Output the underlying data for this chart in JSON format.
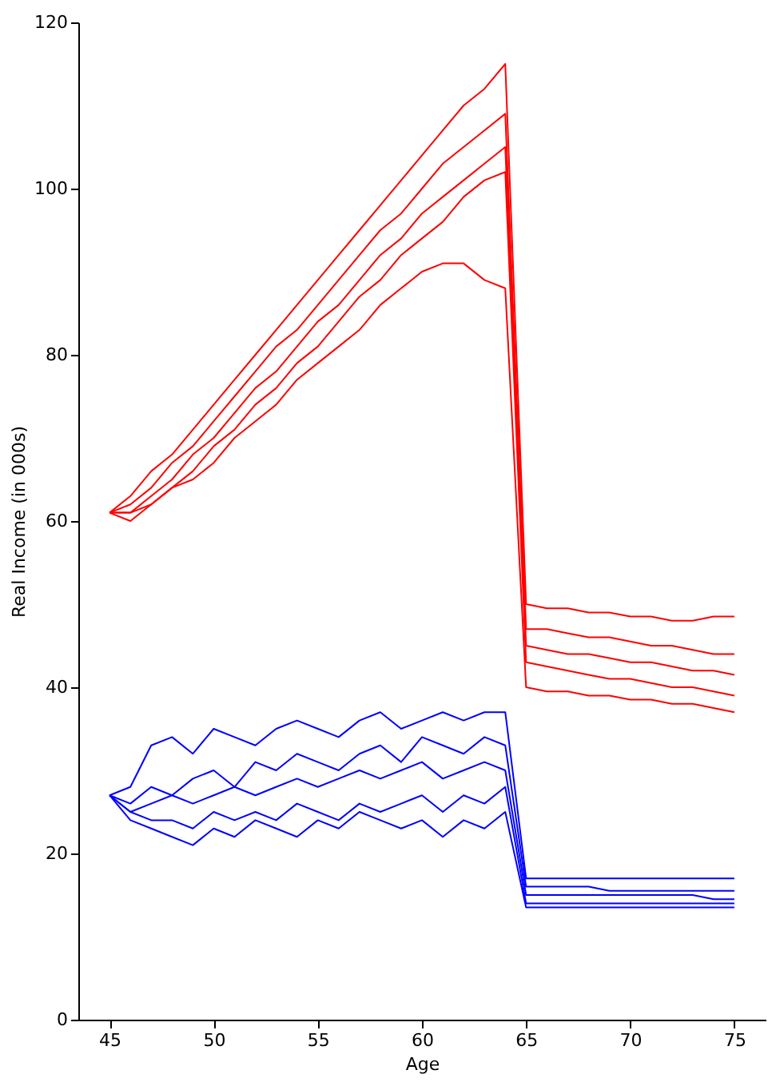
{
  "chart_data": {
    "type": "line",
    "xlabel": "Age",
    "ylabel": "Real Income (in 000s)",
    "x": [
      45,
      46,
      47,
      48,
      49,
      50,
      51,
      52,
      53,
      54,
      55,
      56,
      57,
      58,
      59,
      60,
      61,
      62,
      63,
      64,
      65,
      66,
      67,
      68,
      69,
      70,
      71,
      72,
      73,
      74,
      75
    ],
    "xlim": [
      43.5,
      76.5
    ],
    "xticks": [
      45,
      50,
      55,
      60,
      65,
      70,
      75
    ],
    "ylim": [
      0,
      120
    ],
    "yticks": [
      0,
      20,
      40,
      60,
      80,
      100,
      120
    ],
    "grid": false,
    "legend": false,
    "series": [
      {
        "color": "#ff0000",
        "values": [
          61,
          63,
          66,
          68,
          71,
          74,
          77,
          80,
          83,
          86,
          89,
          92,
          95,
          98,
          101,
          104,
          107,
          110,
          112,
          115,
          50,
          49.5,
          49.5,
          49,
          49,
          48.5,
          48.5,
          48,
          48,
          48.5,
          48.5
        ]
      },
      {
        "color": "#ff0000",
        "values": [
          61,
          62,
          64,
          67,
          69,
          72,
          75,
          78,
          81,
          83,
          86,
          89,
          92,
          95,
          97,
          100,
          103,
          105,
          107,
          109,
          47,
          47,
          46.5,
          46,
          46,
          45.5,
          45,
          45,
          44.5,
          44,
          44
        ]
      },
      {
        "color": "#ff0000",
        "values": [
          61,
          61,
          63,
          65,
          68,
          70,
          73,
          76,
          78,
          81,
          84,
          86,
          89,
          92,
          94,
          97,
          99,
          101,
          103,
          105,
          45,
          44.5,
          44,
          44,
          43.5,
          43,
          43,
          42.5,
          42,
          42,
          41.5
        ]
      },
      {
        "color": "#ff0000",
        "values": [
          61,
          60,
          62,
          64,
          66,
          69,
          71,
          74,
          76,
          79,
          81,
          84,
          87,
          89,
          92,
          94,
          96,
          99,
          101,
          102,
          43,
          42.5,
          42,
          41.5,
          41,
          41,
          40.5,
          40,
          40,
          39.5,
          39
        ]
      },
      {
        "color": "#ff0000",
        "values": [
          61,
          61,
          62,
          64,
          65,
          67,
          70,
          72,
          74,
          77,
          79,
          81,
          83,
          86,
          88,
          90,
          91,
          91,
          89,
          88,
          40,
          39.5,
          39.5,
          39,
          39,
          38.5,
          38.5,
          38,
          38,
          37.5,
          37
        ]
      },
      {
        "color": "#0000ff",
        "values": [
          27,
          28,
          33,
          34,
          32,
          35,
          34,
          33,
          35,
          36,
          35,
          34,
          36,
          37,
          35,
          36,
          37,
          36,
          37,
          37,
          17,
          17,
          17,
          17,
          17,
          17,
          17,
          17,
          17,
          17,
          17
        ]
      },
      {
        "color": "#0000ff",
        "values": [
          27,
          26,
          28,
          27,
          29,
          30,
          28,
          31,
          30,
          32,
          31,
          30,
          32,
          33,
          31,
          34,
          33,
          32,
          34,
          33,
          16,
          16,
          16,
          16,
          15.5,
          15.5,
          15.5,
          15.5,
          15.5,
          15.5,
          15.5
        ]
      },
      {
        "color": "#0000ff",
        "values": [
          27,
          25,
          26,
          27,
          26,
          27,
          28,
          27,
          28,
          29,
          28,
          29,
          30,
          29,
          30,
          31,
          29,
          30,
          31,
          30,
          15,
          15,
          15,
          15,
          15,
          15,
          15,
          15,
          15,
          14.5,
          14.5
        ]
      },
      {
        "color": "#0000ff",
        "values": [
          27,
          25,
          24,
          24,
          23,
          25,
          24,
          25,
          24,
          26,
          25,
          24,
          26,
          25,
          26,
          27,
          25,
          27,
          26,
          28,
          14,
          14,
          14,
          14,
          14,
          14,
          14,
          14,
          14,
          14,
          14
        ]
      },
      {
        "color": "#0000ff",
        "values": [
          27,
          24,
          23,
          22,
          21,
          23,
          22,
          24,
          23,
          22,
          24,
          23,
          25,
          24,
          23,
          24,
          22,
          24,
          23,
          25,
          13.5,
          13.5,
          13.5,
          13.5,
          13.5,
          13.5,
          13.5,
          13.5,
          13.5,
          13.5,
          13.5
        ]
      }
    ]
  }
}
